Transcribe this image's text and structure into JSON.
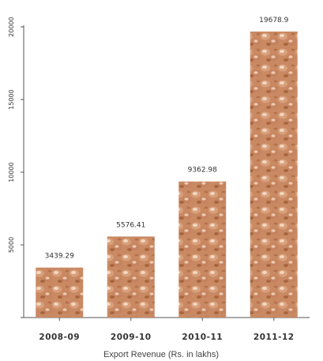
{
  "chart_data": {
    "type": "bar",
    "categories": [
      "2008-09",
      "2009-10",
      "2010-11",
      "2011-12"
    ],
    "values": [
      3439.29,
      5576.41,
      9362.98,
      19678.9
    ],
    "value_labels": [
      "3439.29",
      "5576.41",
      "9362.98",
      "19678.9"
    ],
    "title": "",
    "xlabel": "Export Revenue (Rs. in lakhs)",
    "ylabel": "",
    "ylim": [
      0,
      20000
    ],
    "yticks": [
      0,
      5000,
      10000,
      15000,
      20000
    ],
    "ytick_labels": [
      "0",
      "5000",
      "10000",
      "15000",
      "20000"
    ],
    "grid": false,
    "legend": "none",
    "bar_fill": "peanut-texture",
    "colors": {
      "bar_base": "#c98a63",
      "bar_light": "#f1d8c3",
      "bar_dark": "#9a5a38",
      "axis": "#555555",
      "text": "#333333"
    }
  }
}
